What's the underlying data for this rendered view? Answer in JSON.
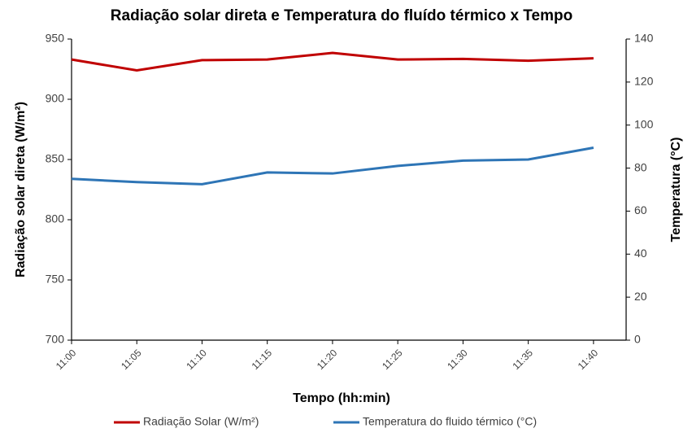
{
  "chart_data": {
    "type": "line",
    "title": "Radiação solar direta e Temperatura do fluído térmico x Tempo",
    "x_label": "Tempo (hh:min)",
    "y_label": "Radiação solar direta (W/m²)",
    "y2_label": "Temperatura (°C)",
    "categories": [
      "11:00",
      "11:05",
      "11:10",
      "11:15",
      "11:20",
      "11:25",
      "11:30",
      "11:35",
      "11:40"
    ],
    "series": [
      {
        "name": "Radiação Solar (W/m²)",
        "color": "#c00000",
        "values": [
          933,
          924,
          932.5,
          933,
          938.5,
          933,
          933.5,
          932,
          934
        ]
      },
      {
        "name": "Temperatura do fluido térmico (°C)",
        "color": "#2e75b6",
        "axis": "y2",
        "values": [
          75,
          73.5,
          72.5,
          78,
          77.5,
          81,
          83.5,
          84,
          89.5
        ]
      }
    ],
    "ylim": [
      700,
      950
    ],
    "yticks": [
      700,
      750,
      800,
      850,
      900,
      950
    ],
    "y2lim": [
      0,
      140
    ],
    "y2ticks": [
      0,
      20,
      40,
      60,
      80,
      100,
      120,
      140
    ],
    "legend": "bottom"
  }
}
